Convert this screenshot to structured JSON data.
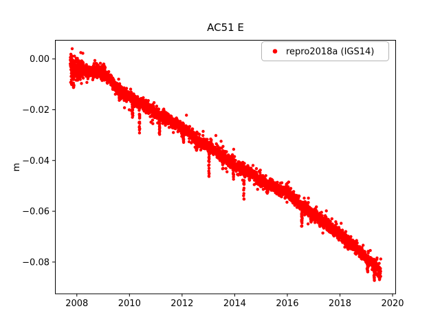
{
  "chart": {
    "title": "AC51 E",
    "ylabel": "m",
    "legend": {
      "label": "repro2018a (IGS14)",
      "marker_color": "#ff0000"
    },
    "colors": {
      "points": "#ff0000",
      "axes": "#000000",
      "background": "#ffffff",
      "legend_border": "#b3b3b3"
    }
  },
  "chart_data": {
    "type": "scatter",
    "title": "AC51 E",
    "xlabel": "",
    "ylabel": "m",
    "grid": false,
    "legend_position": "upper right",
    "xlim": [
      2007.17,
      2020.13
    ],
    "ylim": [
      -0.0925,
      0.0075
    ],
    "xticks": [
      2008,
      2010,
      2012,
      2014,
      2016,
      2018,
      2020
    ],
    "xtick_labels": [
      "2008",
      "2010",
      "2012",
      "2014",
      "2016",
      "2018",
      "2020"
    ],
    "yticks": [
      0.0,
      -0.02,
      -0.04,
      -0.06,
      -0.08
    ],
    "ytick_labels": [
      "0.00",
      "−0.02",
      "−0.04",
      "−0.06",
      "−0.08"
    ],
    "series": [
      {
        "name": "repro2018a (IGS14)",
        "color": "#ff0000",
        "marker": "dot",
        "x_start": 2007.75,
        "x_end": 2019.55,
        "points_per_year": 330,
        "noise_sigma_m": 0.0011,
        "outlier_fraction": 0.1,
        "outlier_sigma_m": 0.0022,
        "early_noise_until": 2008.25,
        "early_noise_factor": 2.0,
        "trend_anchors": [
          [
            2007.75,
            -0.0015
          ],
          [
            2008.0,
            -0.004
          ],
          [
            2008.35,
            -0.005
          ],
          [
            2008.75,
            -0.0045
          ],
          [
            2009.15,
            -0.0065
          ],
          [
            2009.6,
            -0.0125
          ],
          [
            2010.0,
            -0.015
          ],
          [
            2010.5,
            -0.018
          ],
          [
            2011.0,
            -0.0215
          ],
          [
            2011.5,
            -0.024
          ],
          [
            2012.0,
            -0.027
          ],
          [
            2012.5,
            -0.0315
          ],
          [
            2013.0,
            -0.0345
          ],
          [
            2013.5,
            -0.038
          ],
          [
            2014.0,
            -0.0415
          ],
          [
            2014.5,
            -0.0445
          ],
          [
            2015.0,
            -0.048
          ],
          [
            2015.5,
            -0.0505
          ],
          [
            2016.0,
            -0.0525
          ],
          [
            2016.35,
            -0.056
          ],
          [
            2016.7,
            -0.059
          ],
          [
            2017.0,
            -0.0615
          ],
          [
            2017.5,
            -0.065
          ],
          [
            2018.0,
            -0.069
          ],
          [
            2018.5,
            -0.0735
          ],
          [
            2019.0,
            -0.0785
          ],
          [
            2019.3,
            -0.081
          ],
          [
            2019.55,
            -0.0835
          ]
        ],
        "downward_spikes": [
          [
            2007.8,
            -0.0105
          ],
          [
            2007.88,
            -0.012
          ],
          [
            2008.02,
            -0.0095
          ],
          [
            2009.62,
            -0.0165
          ],
          [
            2010.12,
            -0.023
          ],
          [
            2010.38,
            -0.0295
          ],
          [
            2011.14,
            -0.03
          ],
          [
            2012.05,
            -0.033
          ],
          [
            2012.55,
            -0.036
          ],
          [
            2013.02,
            -0.047
          ],
          [
            2013.55,
            -0.0435
          ],
          [
            2013.95,
            -0.048
          ],
          [
            2014.35,
            -0.0555
          ],
          [
            2015.25,
            -0.053
          ],
          [
            2016.55,
            -0.066
          ],
          [
            2016.9,
            -0.0645
          ],
          [
            2018.3,
            -0.075
          ],
          [
            2019.05,
            -0.084
          ],
          [
            2019.3,
            -0.0875
          ],
          [
            2019.5,
            -0.087
          ]
        ],
        "outlier_points": [
          [
            2008.15,
            0.0025
          ],
          [
            2008.98,
            -0.0025
          ],
          [
            2009.02,
            -0.002
          ],
          [
            2009.06,
            -0.003
          ],
          [
            2016.0,
            -0.049
          ],
          [
            2016.05,
            -0.0485
          ]
        ]
      }
    ]
  }
}
